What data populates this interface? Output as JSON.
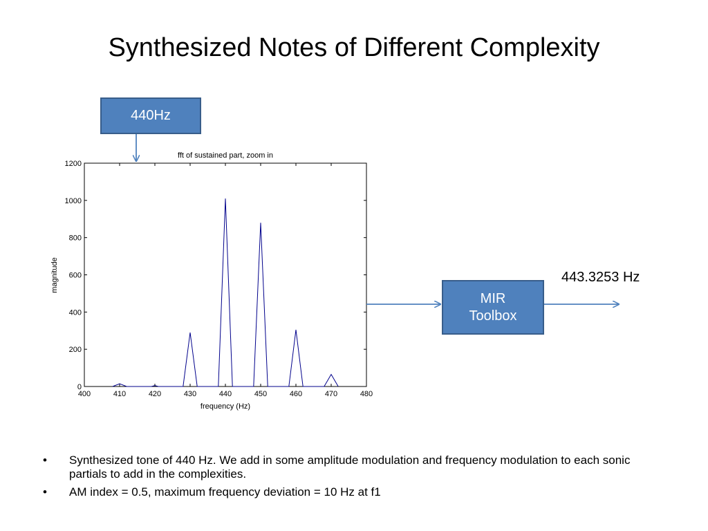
{
  "slide": {
    "title": "Synthesized Notes of Different Complexity",
    "input_label": "440Hz",
    "mir_line1": "MIR",
    "mir_line2": "Toolbox",
    "result": "443.3253 Hz",
    "bullets": [
      "Synthesized tone of 440 Hz. We add in some amplitude modulation and frequency modulation to each sonic partials to add in the complexities.",
      "AM index = 0.5, maximum frequency deviation  = 10 Hz at f1"
    ],
    "bullet_char": "•"
  },
  "colors": {
    "box_fill": "#4f81bd",
    "box_border": "#385d8a",
    "arrow": "#4f81bd",
    "line": "#00008b"
  },
  "chart_data": {
    "type": "line",
    "title": "fft of sustained part, zoom in",
    "xlabel": "frequency (Hz)",
    "ylabel": "magnitude",
    "xlim": [
      400,
      480
    ],
    "ylim": [
      0,
      1200
    ],
    "xticks": [
      400,
      410,
      420,
      430,
      440,
      450,
      460,
      470,
      480
    ],
    "yticks": [
      0,
      200,
      400,
      600,
      800,
      1000,
      1200
    ],
    "x": [
      408,
      410,
      412,
      419,
      420,
      421,
      428,
      430,
      432,
      438,
      440,
      442,
      448,
      450,
      452,
      458,
      460,
      462,
      468,
      470,
      472
    ],
    "y": [
      0,
      15,
      0,
      0,
      5,
      0,
      0,
      290,
      0,
      0,
      1010,
      0,
      0,
      880,
      0,
      0,
      305,
      0,
      0,
      65,
      0
    ]
  }
}
